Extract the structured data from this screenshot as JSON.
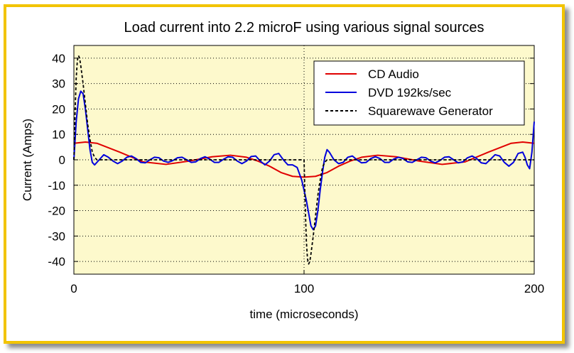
{
  "chart_data": {
    "type": "line",
    "title": "Load current into 2.2 microF using various signal sources",
    "xlabel": "time (microseconds)",
    "ylabel": "Current (Amps)",
    "xlim": [
      0,
      200
    ],
    "ylim": [
      -45,
      45
    ],
    "x_ticks": [
      0,
      100,
      200
    ],
    "y_ticks": [
      40,
      30,
      20,
      10,
      0,
      -10,
      -20,
      -30,
      -40
    ],
    "grid": true,
    "legend_position": "top-right",
    "series": [
      {
        "name": "CD Audio",
        "color": "#e00000",
        "dash": "solid",
        "points": [
          [
            0,
            6.5
          ],
          [
            5,
            7
          ],
          [
            10,
            6.5
          ],
          [
            20,
            3
          ],
          [
            30,
            -0.8
          ],
          [
            40,
            -1.8
          ],
          [
            50,
            -0.5
          ],
          [
            60,
            1.2
          ],
          [
            68,
            1.8
          ],
          [
            75,
            1
          ],
          [
            80,
            -0.5
          ],
          [
            85,
            -2.5
          ],
          [
            90,
            -5
          ],
          [
            95,
            -6.5
          ],
          [
            100,
            -6.8
          ],
          [
            105,
            -6.5
          ],
          [
            110,
            -5
          ],
          [
            115,
            -2.5
          ],
          [
            120,
            -0.5
          ],
          [
            125,
            1
          ],
          [
            132,
            1.8
          ],
          [
            140,
            1.2
          ],
          [
            150,
            -0.5
          ],
          [
            160,
            -1.8
          ],
          [
            170,
            -0.8
          ],
          [
            180,
            3
          ],
          [
            190,
            6.5
          ],
          [
            195,
            7
          ],
          [
            200,
            6.5
          ]
        ]
      },
      {
        "name": "DVD 192ks/sec",
        "color": "#0000dd",
        "dash": "solid",
        "points": [
          [
            0,
            0
          ],
          [
            1,
            15
          ],
          [
            2,
            24
          ],
          [
            3,
            27
          ],
          [
            4,
            26
          ],
          [
            5,
            20
          ],
          [
            6,
            12
          ],
          [
            7,
            4
          ],
          [
            8,
            -1
          ],
          [
            9,
            -2
          ],
          [
            11,
            0
          ],
          [
            13,
            2
          ],
          [
            15,
            1
          ],
          [
            17,
            -0.5
          ],
          [
            19,
            -1.5
          ],
          [
            21,
            -0.5
          ],
          [
            23,
            1
          ],
          [
            25,
            1.5
          ],
          [
            27,
            0.5
          ],
          [
            29,
            -1
          ],
          [
            31,
            -1.2
          ],
          [
            33,
            0
          ],
          [
            35,
            1
          ],
          [
            37,
            0.8
          ],
          [
            39,
            -0.5
          ],
          [
            41,
            -1
          ],
          [
            43,
            -0.3
          ],
          [
            45,
            0.8
          ],
          [
            47,
            1
          ],
          [
            49,
            0
          ],
          [
            51,
            -1
          ],
          [
            53,
            -0.8
          ],
          [
            55,
            0.5
          ],
          [
            57,
            1.2
          ],
          [
            59,
            0.3
          ],
          [
            61,
            -1
          ],
          [
            63,
            -1
          ],
          [
            65,
            0.2
          ],
          [
            67,
            1.2
          ],
          [
            69,
            1
          ],
          [
            71,
            -0.5
          ],
          [
            73,
            -1.5
          ],
          [
            75,
            -0.5
          ],
          [
            77,
            1.3
          ],
          [
            79,
            1.5
          ],
          [
            81,
            -0.5
          ],
          [
            83,
            -2
          ],
          [
            85,
            -0.5
          ],
          [
            87,
            2
          ],
          [
            89,
            2.5
          ],
          [
            91,
            0
          ],
          [
            93,
            -2
          ],
          [
            95,
            -2
          ],
          [
            97,
            -3
          ],
          [
            99,
            -8
          ],
          [
            101,
            -16
          ],
          [
            102,
            -21
          ],
          [
            103,
            -26
          ],
          [
            104,
            -27.5
          ],
          [
            105,
            -26
          ],
          [
            106,
            -20
          ],
          [
            107,
            -12
          ],
          [
            108,
            -5
          ],
          [
            109,
            1
          ],
          [
            110,
            4
          ],
          [
            111,
            3
          ],
          [
            113,
            0
          ],
          [
            115,
            -1.5
          ],
          [
            117,
            -1
          ],
          [
            119,
            1
          ],
          [
            121,
            1.5
          ],
          [
            123,
            0
          ],
          [
            125,
            -1.2
          ],
          [
            127,
            -1
          ],
          [
            129,
            0.5
          ],
          [
            131,
            1.2
          ],
          [
            133,
            0.5
          ],
          [
            135,
            -1
          ],
          [
            137,
            -1
          ],
          [
            139,
            0.3
          ],
          [
            141,
            1
          ],
          [
            143,
            0.5
          ],
          [
            145,
            -0.8
          ],
          [
            147,
            -1
          ],
          [
            149,
            0
          ],
          [
            151,
            1
          ],
          [
            153,
            0.8
          ],
          [
            155,
            -0.5
          ],
          [
            157,
            -1.2
          ],
          [
            159,
            -0.3
          ],
          [
            161,
            1
          ],
          [
            163,
            1.2
          ],
          [
            165,
            0
          ],
          [
            167,
            -1.2
          ],
          [
            169,
            -0.8
          ],
          [
            171,
            0.8
          ],
          [
            173,
            1.5
          ],
          [
            175,
            0.5
          ],
          [
            177,
            -1.2
          ],
          [
            179,
            -1.5
          ],
          [
            181,
            0.2
          ],
          [
            183,
            2
          ],
          [
            185,
            1.5
          ],
          [
            187,
            -1
          ],
          [
            189,
            -2.5
          ],
          [
            191,
            -1
          ],
          [
            193,
            2.5
          ],
          [
            195,
            3
          ],
          [
            196,
            1
          ],
          [
            197,
            -2
          ],
          [
            198,
            -3.5
          ],
          [
            199,
            3
          ],
          [
            200,
            15
          ]
        ]
      },
      {
        "name": "Squarewave Generator",
        "color": "#000000",
        "dash": "dashed",
        "points": [
          [
            0,
            0
          ],
          [
            0.5,
            18
          ],
          [
            1,
            32
          ],
          [
            1.5,
            39
          ],
          [
            2,
            41
          ],
          [
            2.5,
            40
          ],
          [
            3,
            37
          ],
          [
            4,
            30
          ],
          [
            5,
            22
          ],
          [
            6,
            14
          ],
          [
            7,
            8
          ],
          [
            8,
            3
          ],
          [
            9,
            1
          ],
          [
            10,
            0
          ],
          [
            100,
            0
          ],
          [
            100.5,
            -18
          ],
          [
            101,
            -32
          ],
          [
            101.5,
            -39
          ],
          [
            102,
            -41
          ],
          [
            102.5,
            -40
          ],
          [
            103,
            -37
          ],
          [
            104,
            -30
          ],
          [
            105,
            -22
          ],
          [
            106,
            -14
          ],
          [
            107,
            -8
          ],
          [
            108,
            -3
          ],
          [
            109,
            -1
          ],
          [
            110,
            0
          ],
          [
            200,
            0
          ]
        ]
      }
    ]
  }
}
